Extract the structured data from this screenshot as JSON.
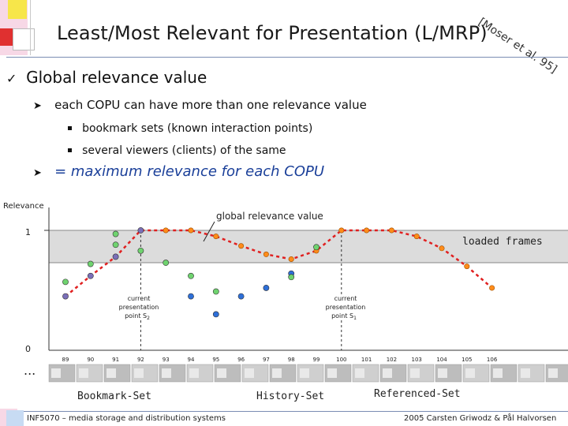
{
  "slide": {
    "title": "Least/Most Relevant for Presentation (L/MRP)",
    "reference": "[Moser et al. 95]"
  },
  "bullets": {
    "level1": {
      "marker": "ü",
      "text": "Global relevance value"
    },
    "items": [
      {
        "marker": "Ø",
        "text": "each COPU can have more than one relevance value",
        "subitems": [
          "bookmark sets (known interaction points)",
          "several viewers (clients) of the same"
        ]
      },
      {
        "marker": "Ø",
        "text": "= maximum relevance for each COPU"
      }
    ]
  },
  "chart_data": {
    "type": "scatter",
    "ylabel": "Relevance",
    "yticks": [
      "1",
      "0"
    ],
    "ylim": [
      0,
      1
    ],
    "x_categories": [
      "89",
      "90",
      "91",
      "92",
      "93",
      "94",
      "95",
      "96",
      "97",
      "98",
      "99",
      "100",
      "101",
      "102",
      "103",
      "104",
      "105",
      "106"
    ],
    "ellipsis_left": "...",
    "ellipsis_right": "...",
    "band_label": "loaded frames",
    "curve_label": "global relevance value",
    "annotation_s2": [
      "current",
      "presentation",
      "point S",
      "2"
    ],
    "annotation_s1": [
      "current",
      "presentation",
      "point S",
      "1"
    ],
    "set_labels": [
      "Bookmark-Set",
      "History-Set",
      "Referenced-Set"
    ],
    "colors": {
      "curve": "#e02020",
      "curve_points": "#ff8c1a",
      "bookmark": "#7a6fb8",
      "history": "#2e6fd8",
      "referenced": "#6fd36f",
      "band": "#dcdcdc"
    },
    "global_relevance": [
      {
        "x": "89",
        "y": 0.45
      },
      {
        "x": "90",
        "y": 0.62
      },
      {
        "x": "91",
        "y": 0.78
      },
      {
        "x": "92",
        "y": 1.0
      },
      {
        "x": "93",
        "y": 1.0
      },
      {
        "x": "94",
        "y": 1.0
      },
      {
        "x": "95",
        "y": 0.95
      },
      {
        "x": "96",
        "y": 0.87
      },
      {
        "x": "97",
        "y": 0.8
      },
      {
        "x": "98",
        "y": 0.76
      },
      {
        "x": "99",
        "y": 0.83
      },
      {
        "x": "100",
        "y": 1.0
      },
      {
        "x": "101",
        "y": 1.0
      },
      {
        "x": "102",
        "y": 1.0
      },
      {
        "x": "103",
        "y": 0.95
      },
      {
        "x": "104",
        "y": 0.85
      },
      {
        "x": "105",
        "y": 0.7
      },
      {
        "x": "106",
        "y": 0.52
      }
    ],
    "series": [
      {
        "name": "Bookmark-Set",
        "points": [
          {
            "x": "89",
            "y": 0.45
          },
          {
            "x": "90",
            "y": 0.62
          },
          {
            "x": "91",
            "y": 0.78
          },
          {
            "x": "92",
            "y": 1.0
          }
        ]
      },
      {
        "name": "History-Set",
        "points": [
          {
            "x": "94",
            "y": 0.45
          },
          {
            "x": "95",
            "y": 0.3
          },
          {
            "x": "96",
            "y": 0.45
          },
          {
            "x": "97",
            "y": 0.52
          },
          {
            "x": "98",
            "y": 0.64
          }
        ]
      },
      {
        "name": "Referenced-Set",
        "points": [
          {
            "x": "89",
            "y": 0.57
          },
          {
            "x": "90",
            "y": 0.72
          },
          {
            "x": "91",
            "y": 0.88
          },
          {
            "x": "91",
            "y": 0.97
          },
          {
            "x": "92",
            "y": 0.83
          },
          {
            "x": "93",
            "y": 0.73
          },
          {
            "x": "94",
            "y": 0.62
          },
          {
            "x": "95",
            "y": 0.49
          },
          {
            "x": "98",
            "y": 0.61
          },
          {
            "x": "99",
            "y": 0.86
          }
        ]
      }
    ]
  },
  "footer": {
    "left": "INF5070 – media storage and distribution systems",
    "right": "2005  Carsten Griwodz & Pål Halvorsen"
  }
}
